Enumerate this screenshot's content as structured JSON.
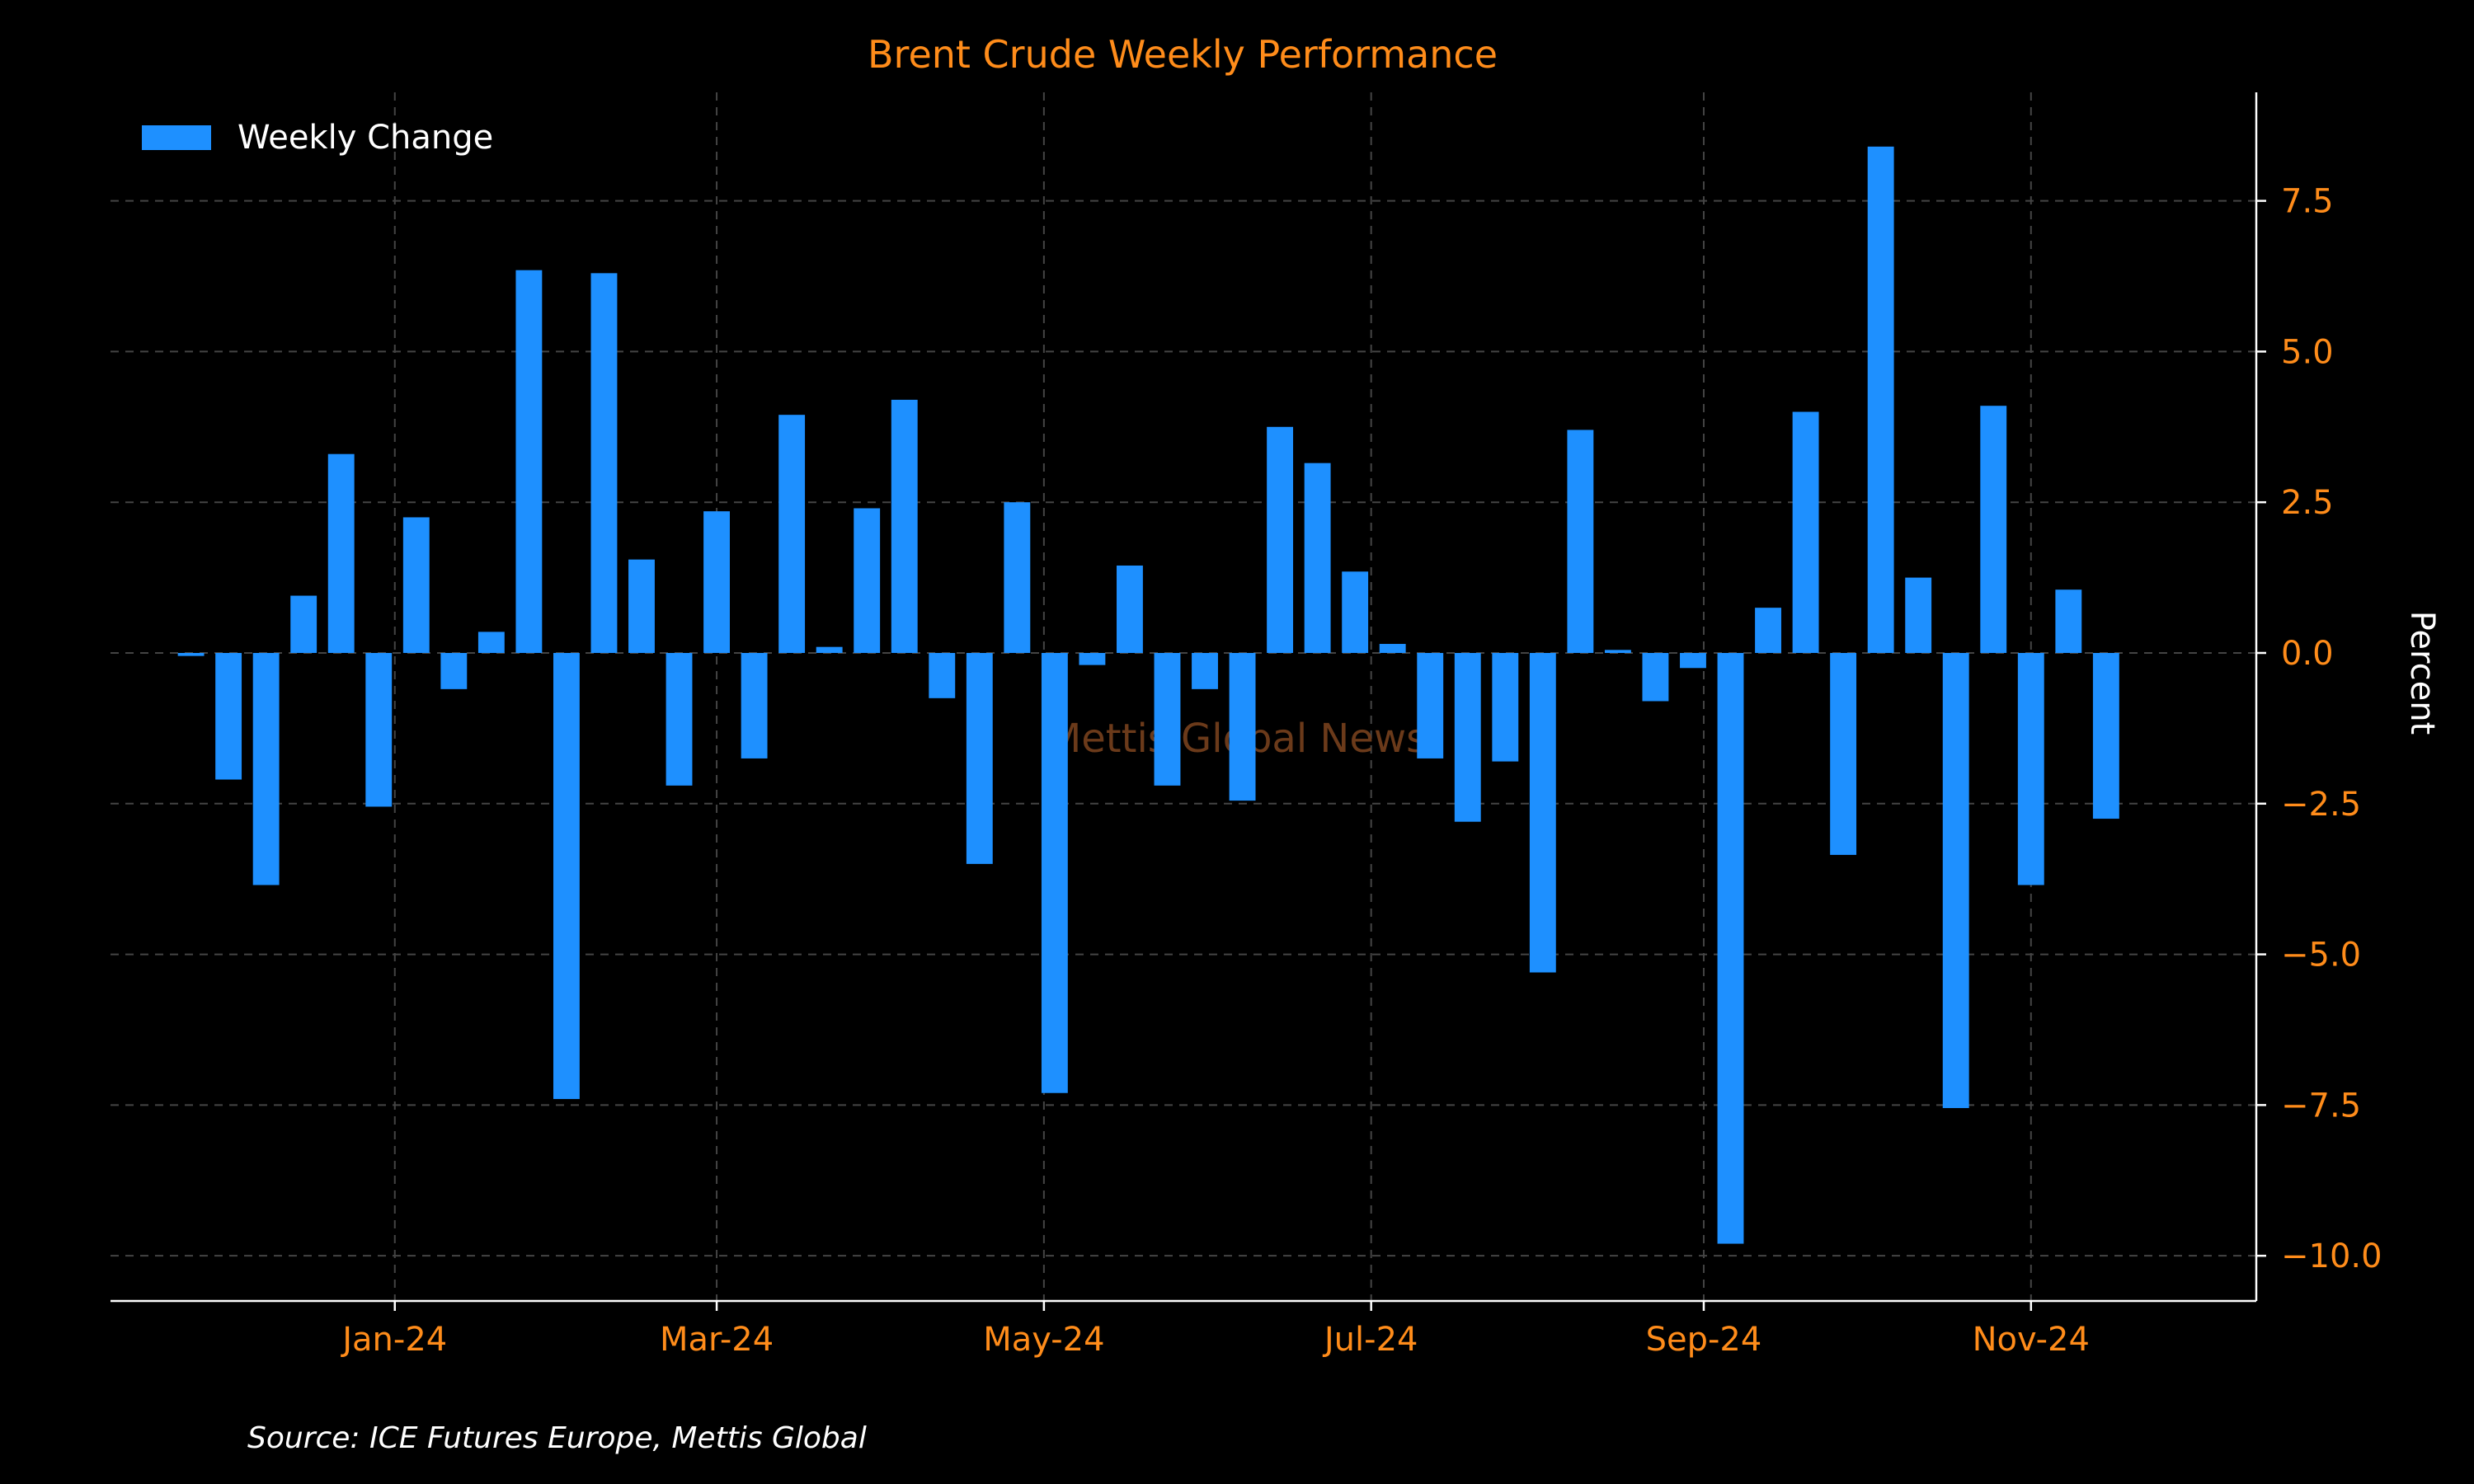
{
  "chart_data": {
    "type": "bar",
    "title": "Brent Crude Weekly Performance",
    "ylabel": "Percent",
    "xlabel": "",
    "source": "Source: ICE Futures Europe, Mettis Global",
    "watermark": "Mettis Global News",
    "legend": {
      "label": "Weekly Change",
      "position": "top-left"
    },
    "colors": {
      "bar": "#1e90ff",
      "text": "#ff8c1a",
      "background": "#000000"
    },
    "grid": true,
    "y_axis_side": "right",
    "ylim": [
      -10.75,
      9.3
    ],
    "yticks": [
      -10.0,
      -7.5,
      -5.0,
      -2.5,
      0.0,
      2.5,
      5.0,
      7.5
    ],
    "ytick_labels": [
      "−10.0",
      "−7.5",
      "−5.0",
      "−2.5",
      "0.0",
      "2.5",
      "5.0",
      "7.5"
    ],
    "xlim": [
      "2023-11-09",
      "2024-12-13"
    ],
    "xticks": [
      "2024-01-01",
      "2024-03-01",
      "2024-05-01",
      "2024-07-01",
      "2024-09-01",
      "2024-11-01"
    ],
    "xtick_labels": [
      "Jan-24",
      "Mar-24",
      "May-24",
      "Jul-24",
      "Sep-24",
      "Nov-24"
    ],
    "x": [
      "2023-11-24",
      "2023-12-01",
      "2023-12-08",
      "2023-12-15",
      "2023-12-22",
      "2023-12-29",
      "2024-01-05",
      "2024-01-12",
      "2024-01-19",
      "2024-01-26",
      "2024-02-02",
      "2024-02-09",
      "2024-02-16",
      "2024-02-23",
      "2024-03-01",
      "2024-03-08",
      "2024-03-15",
      "2024-03-22",
      "2024-03-29",
      "2024-04-05",
      "2024-04-12",
      "2024-04-19",
      "2024-04-26",
      "2024-05-03",
      "2024-05-10",
      "2024-05-17",
      "2024-05-24",
      "2024-05-31",
      "2024-06-07",
      "2024-06-14",
      "2024-06-21",
      "2024-06-28",
      "2024-07-05",
      "2024-07-12",
      "2024-07-19",
      "2024-07-26",
      "2024-08-02",
      "2024-08-09",
      "2024-08-16",
      "2024-08-23",
      "2024-08-30",
      "2024-09-06",
      "2024-09-13",
      "2024-09-20",
      "2024-09-27",
      "2024-10-04",
      "2024-10-11",
      "2024-10-18",
      "2024-10-25",
      "2024-11-01",
      "2024-11-08",
      "2024-11-15"
    ],
    "series": [
      {
        "name": "Weekly Change",
        "values": [
          -0.05,
          -2.1,
          -3.85,
          0.95,
          3.3,
          -2.55,
          2.25,
          -0.6,
          0.35,
          6.35,
          -7.4,
          6.3,
          1.55,
          -2.2,
          2.35,
          -1.75,
          3.95,
          0.1,
          2.4,
          4.2,
          -0.75,
          -3.5,
          2.5,
          -7.3,
          -0.2,
          1.45,
          -2.2,
          -0.6,
          -2.45,
          3.75,
          3.15,
          1.35,
          0.15,
          -1.75,
          -2.8,
          -1.8,
          -5.3,
          3.7,
          0.05,
          -0.8,
          -0.25,
          -9.8,
          0.75,
          4.0,
          -3.35,
          8.4,
          1.25,
          -7.55,
          4.1,
          -3.85,
          1.05,
          -2.75
        ]
      }
    ]
  }
}
